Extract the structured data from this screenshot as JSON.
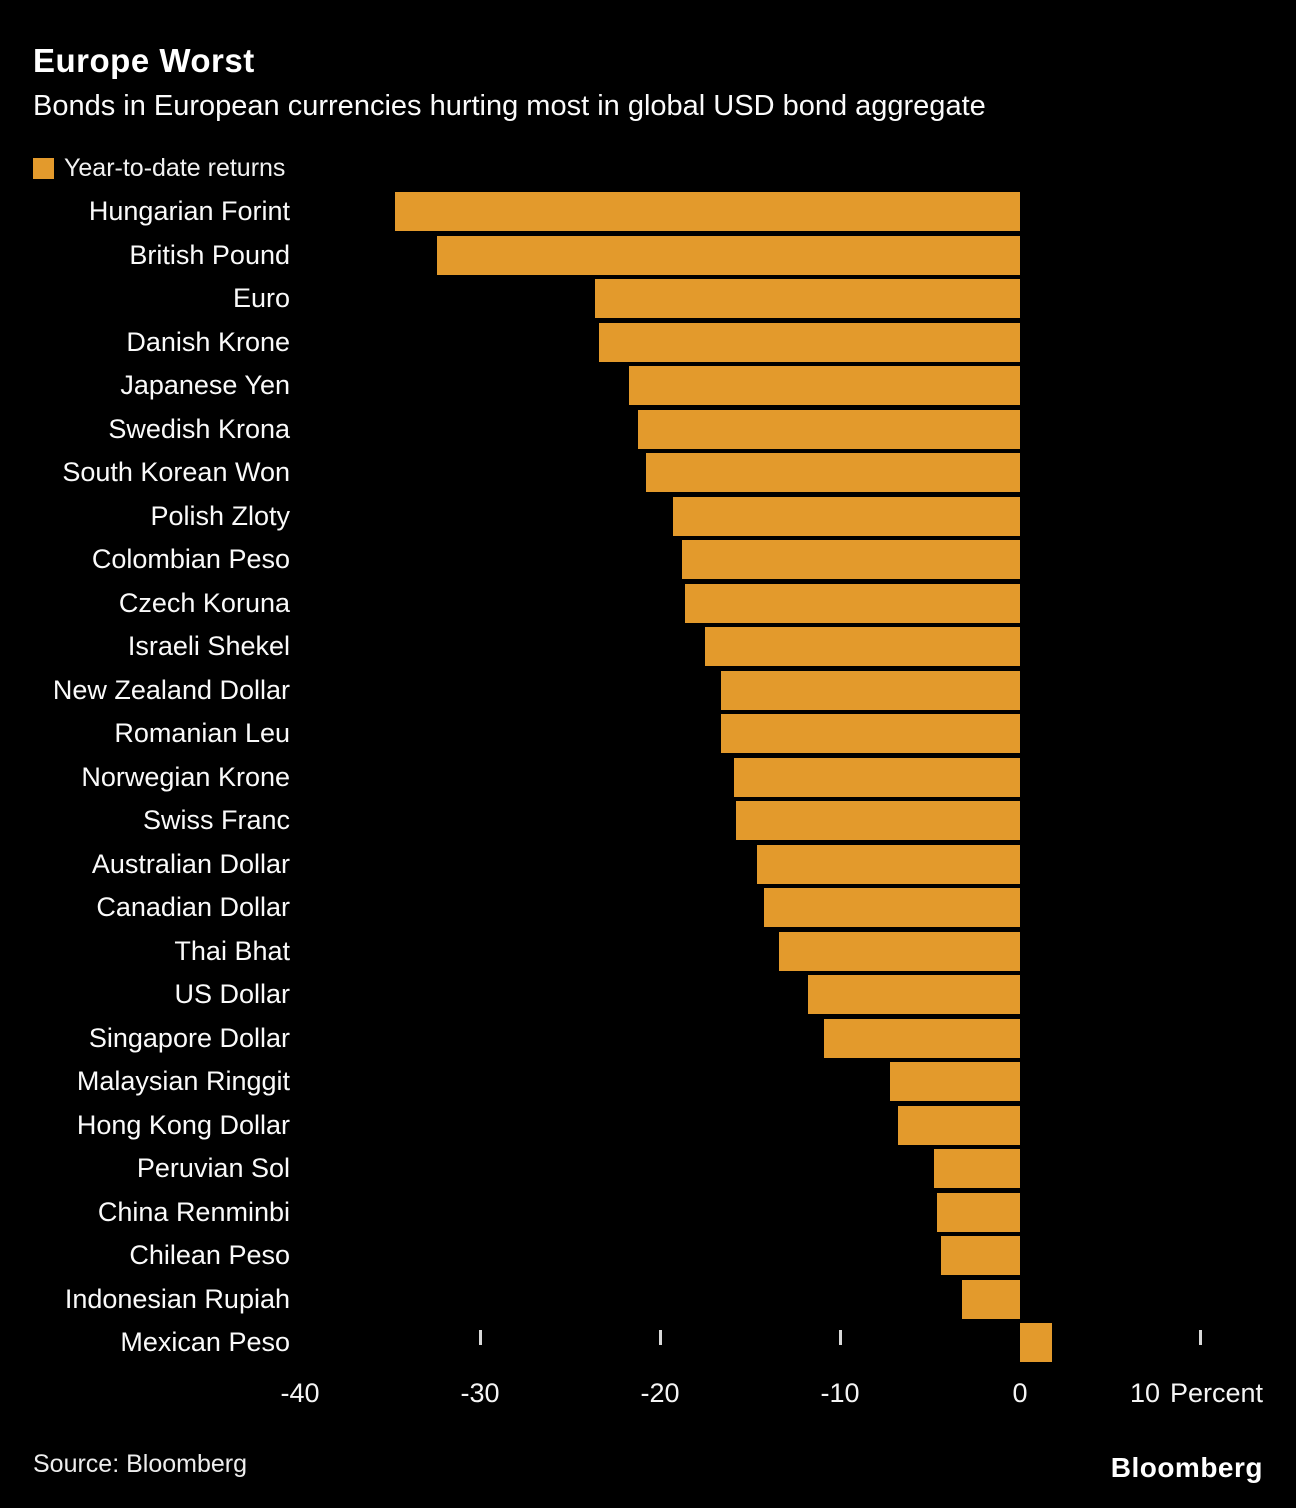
{
  "header": {
    "title": "Europe Worst",
    "subtitle": "Bonds in European currencies hurting most in global USD bond aggregate"
  },
  "legend": {
    "label": "Year-to-date returns",
    "swatch_color": "#E39A2C"
  },
  "chart_data": {
    "type": "bar",
    "orientation": "horizontal",
    "title": "Europe Worst",
    "subtitle": "Bonds in European currencies hurting most in global USD bond aggregate",
    "series_name": "Year-to-date returns",
    "categories": [
      "Hungarian Forint",
      "British Pound",
      "Euro",
      "Danish Krone",
      "Japanese Yen",
      "Swedish Krona",
      "South Korean Won",
      "Polish Zloty",
      "Colombian Peso",
      "Czech Koruna",
      "Israeli Shekel",
      "New Zealand Dollar",
      "Romanian Leu",
      "Norwegian Krone",
      "Swiss Franc",
      "Australian Dollar",
      "Canadian Dollar",
      "Thai Bhat",
      "US Dollar",
      "Singapore Dollar",
      "Malaysian Ringgit",
      "Hong Kong Dollar",
      "Peruvian Sol",
      "China Renminbi",
      "Chilean Peso",
      "Indonesian Rupiah",
      "Mexican Peso"
    ],
    "values": [
      -34.7,
      -32.4,
      -23.6,
      -23.4,
      -21.7,
      -21.2,
      -20.8,
      -19.3,
      -18.8,
      -18.6,
      -17.5,
      -16.6,
      -16.6,
      -15.9,
      -15.8,
      -14.6,
      -14.2,
      -13.4,
      -11.8,
      -10.9,
      -7.2,
      -6.8,
      -4.8,
      -4.6,
      -4.4,
      -3.2,
      1.8
    ],
    "xlabel": "Percent",
    "xlim": [
      -40,
      13.5
    ],
    "tick_marks": [
      -30,
      -20,
      -10,
      10
    ],
    "tick_labels": [
      "-40",
      "-30",
      "-20",
      "-10",
      "0",
      "10"
    ],
    "tick_label_values": [
      -40,
      -30,
      -20,
      -10,
      0,
      10
    ],
    "unit_label": "Percent",
    "bar_color": "#E39A2C",
    "background": "#000000",
    "grid": false,
    "legend_position": "top-left"
  },
  "footer": {
    "source": "Source: Bloomberg",
    "brand": "Bloomberg"
  }
}
